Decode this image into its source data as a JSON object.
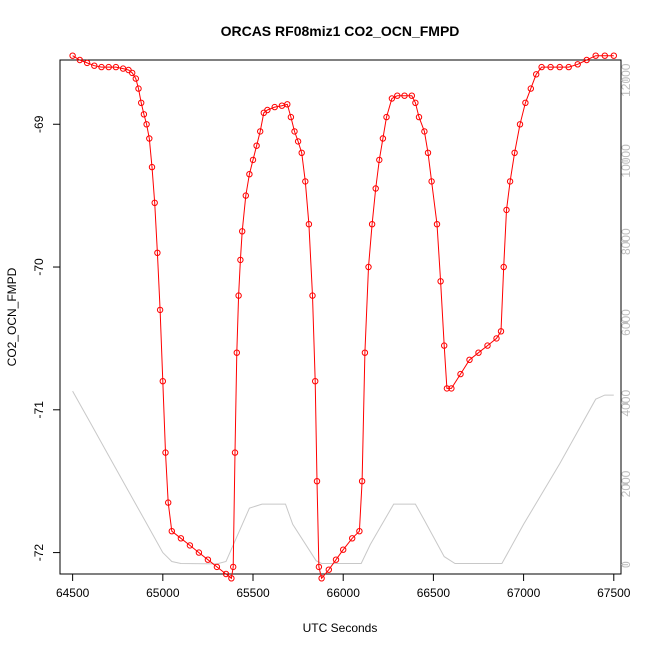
{
  "chart_data": {
    "type": "scatter",
    "title": "ORCAS RF08miz1 CO2_OCN_FMPD",
    "xlabel": "UTC Seconds",
    "ylabel": "CO2_OCN_FMPD",
    "xlim": [
      64430,
      67540
    ],
    "ylim": [
      -72.15,
      -68.55
    ],
    "y2lim": [
      -230,
      12500
    ],
    "x_ticks": [
      64500,
      65000,
      65500,
      66000,
      66500,
      67000,
      67500
    ],
    "y_ticks": [
      -69,
      -70,
      -71,
      -72
    ],
    "y2_ticks": [
      0,
      2000,
      4000,
      6000,
      8000,
      10000,
      12000
    ],
    "colors": {
      "co2": "#ff0000",
      "altitude": "#c8c8c8",
      "axis": "#000000",
      "right_axis": "#bdbdbd"
    },
    "series": [
      {
        "role": "primary",
        "marker": "open-circle",
        "points": [
          [
            64500,
            -68.52
          ],
          [
            64540,
            -68.55
          ],
          [
            64580,
            -68.57
          ],
          [
            64620,
            -68.59
          ],
          [
            64660,
            -68.6
          ],
          [
            64700,
            -68.6
          ],
          [
            64740,
            -68.6
          ],
          [
            64780,
            -68.61
          ],
          [
            64810,
            -68.62
          ],
          [
            64830,
            -68.64
          ],
          [
            64850,
            -68.68
          ],
          [
            64865,
            -68.75
          ],
          [
            64880,
            -68.85
          ],
          [
            64895,
            -68.93
          ],
          [
            64910,
            -69.0
          ],
          [
            64925,
            -69.1
          ],
          [
            64940,
            -69.3
          ],
          [
            64955,
            -69.55
          ],
          [
            64970,
            -69.9
          ],
          [
            64985,
            -70.3
          ],
          [
            65000,
            -70.8
          ],
          [
            65015,
            -71.3
          ],
          [
            65030,
            -71.65
          ],
          [
            65050,
            -71.85
          ],
          [
            65100,
            -71.9
          ],
          [
            65150,
            -71.95
          ],
          [
            65200,
            -72.0
          ],
          [
            65250,
            -72.05
          ],
          [
            65300,
            -72.1
          ],
          [
            65350,
            -72.15
          ],
          [
            65380,
            -72.18
          ],
          [
            65390,
            -72.1
          ],
          [
            65400,
            -71.3
          ],
          [
            65410,
            -70.6
          ],
          [
            65420,
            -70.2
          ],
          [
            65430,
            -69.95
          ],
          [
            65440,
            -69.75
          ],
          [
            65460,
            -69.5
          ],
          [
            65480,
            -69.35
          ],
          [
            65500,
            -69.25
          ],
          [
            65520,
            -69.15
          ],
          [
            65540,
            -69.05
          ],
          [
            65560,
            -68.92
          ],
          [
            65580,
            -68.9
          ],
          [
            65620,
            -68.88
          ],
          [
            65660,
            -68.87
          ],
          [
            65690,
            -68.86
          ],
          [
            65710,
            -68.95
          ],
          [
            65730,
            -69.05
          ],
          [
            65750,
            -69.12
          ],
          [
            65770,
            -69.2
          ],
          [
            65790,
            -69.4
          ],
          [
            65810,
            -69.7
          ],
          [
            65830,
            -70.2
          ],
          [
            65845,
            -70.8
          ],
          [
            65855,
            -71.5
          ],
          [
            65865,
            -72.1
          ],
          [
            65880,
            -72.18
          ],
          [
            65920,
            -72.12
          ],
          [
            65960,
            -72.05
          ],
          [
            66000,
            -71.98
          ],
          [
            66050,
            -71.9
          ],
          [
            66090,
            -71.85
          ],
          [
            66105,
            -71.5
          ],
          [
            66120,
            -70.6
          ],
          [
            66140,
            -70.0
          ],
          [
            66160,
            -69.7
          ],
          [
            66180,
            -69.45
          ],
          [
            66200,
            -69.25
          ],
          [
            66220,
            -69.1
          ],
          [
            66240,
            -68.95
          ],
          [
            66270,
            -68.82
          ],
          [
            66300,
            -68.8
          ],
          [
            66340,
            -68.8
          ],
          [
            66380,
            -68.8
          ],
          [
            66400,
            -68.85
          ],
          [
            66420,
            -68.95
          ],
          [
            66450,
            -69.05
          ],
          [
            66470,
            -69.2
          ],
          [
            66490,
            -69.4
          ],
          [
            66520,
            -69.7
          ],
          [
            66540,
            -70.1
          ],
          [
            66560,
            -70.55
          ],
          [
            66575,
            -70.85
          ],
          [
            66600,
            -70.85
          ],
          [
            66650,
            -70.75
          ],
          [
            66700,
            -70.65
          ],
          [
            66750,
            -70.6
          ],
          [
            66800,
            -70.55
          ],
          [
            66850,
            -70.5
          ],
          [
            66875,
            -70.45
          ],
          [
            66890,
            -70.0
          ],
          [
            66905,
            -69.6
          ],
          [
            66925,
            -69.4
          ],
          [
            66950,
            -69.2
          ],
          [
            66980,
            -69.0
          ],
          [
            67010,
            -68.85
          ],
          [
            67040,
            -68.75
          ],
          [
            67070,
            -68.65
          ],
          [
            67100,
            -68.6
          ],
          [
            67150,
            -68.6
          ],
          [
            67200,
            -68.6
          ],
          [
            67250,
            -68.6
          ],
          [
            67300,
            -68.58
          ],
          [
            67350,
            -68.55
          ],
          [
            67400,
            -68.52
          ],
          [
            67450,
            -68.52
          ],
          [
            67500,
            -68.52
          ]
        ]
      },
      {
        "role": "secondary",
        "axis": "right",
        "points": [
          [
            64500,
            4300
          ],
          [
            64600,
            3500
          ],
          [
            64700,
            2700
          ],
          [
            64800,
            1900
          ],
          [
            64900,
            1100
          ],
          [
            65000,
            300
          ],
          [
            65050,
            80
          ],
          [
            65100,
            30
          ],
          [
            65300,
            20
          ],
          [
            65350,
            80
          ],
          [
            65480,
            1400
          ],
          [
            65550,
            1500
          ],
          [
            65680,
            1500
          ],
          [
            65720,
            1000
          ],
          [
            65850,
            100
          ],
          [
            65880,
            30
          ],
          [
            66100,
            30
          ],
          [
            66150,
            500
          ],
          [
            66280,
            1500
          ],
          [
            66400,
            1500
          ],
          [
            66450,
            1100
          ],
          [
            66560,
            200
          ],
          [
            66620,
            30
          ],
          [
            66880,
            30
          ],
          [
            67000,
            1000
          ],
          [
            67200,
            2500
          ],
          [
            67300,
            3300
          ],
          [
            67400,
            4100
          ],
          [
            67450,
            4200
          ],
          [
            67500,
            4200
          ]
        ]
      }
    ]
  }
}
